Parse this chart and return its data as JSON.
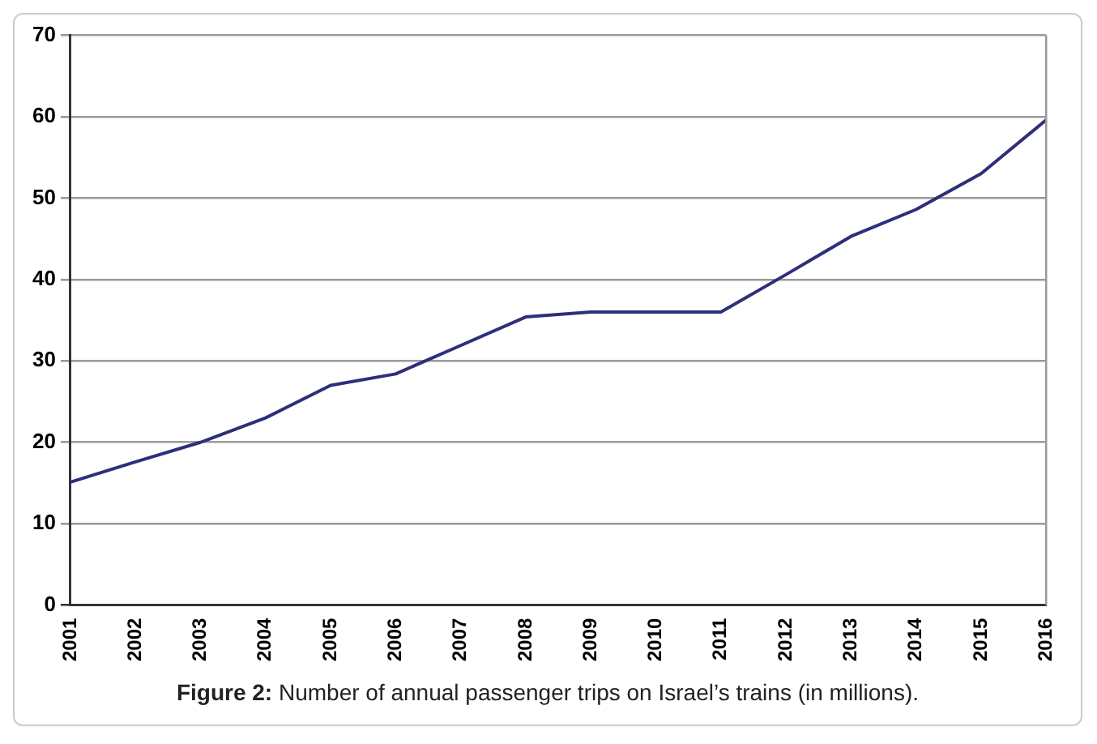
{
  "chart_data": {
    "type": "line",
    "categories": [
      "2001",
      "2002",
      "2003",
      "2004",
      "2005",
      "2006",
      "2007",
      "2008",
      "2009",
      "2010",
      "2011",
      "2012",
      "2013",
      "2014",
      "2015",
      "2016"
    ],
    "series": [
      {
        "color": "#2e2e7a",
        "values": [
          15.1,
          17.6,
          20,
          23,
          27,
          28.4,
          31.9,
          35.4,
          36,
          36,
          36,
          40.6,
          45.3,
          48.6,
          53,
          59.6
        ]
      }
    ],
    "ylim": [
      0,
      70
    ],
    "yticks": [
      0,
      10,
      20,
      30,
      40,
      50,
      60,
      70
    ],
    "grid": "y",
    "legend": false,
    "marker": "none",
    "line_style": "solid",
    "annotations": [
      "Figure 2: Number of annual passenger trips on Israel’s trains (in millions)."
    ]
  }
}
